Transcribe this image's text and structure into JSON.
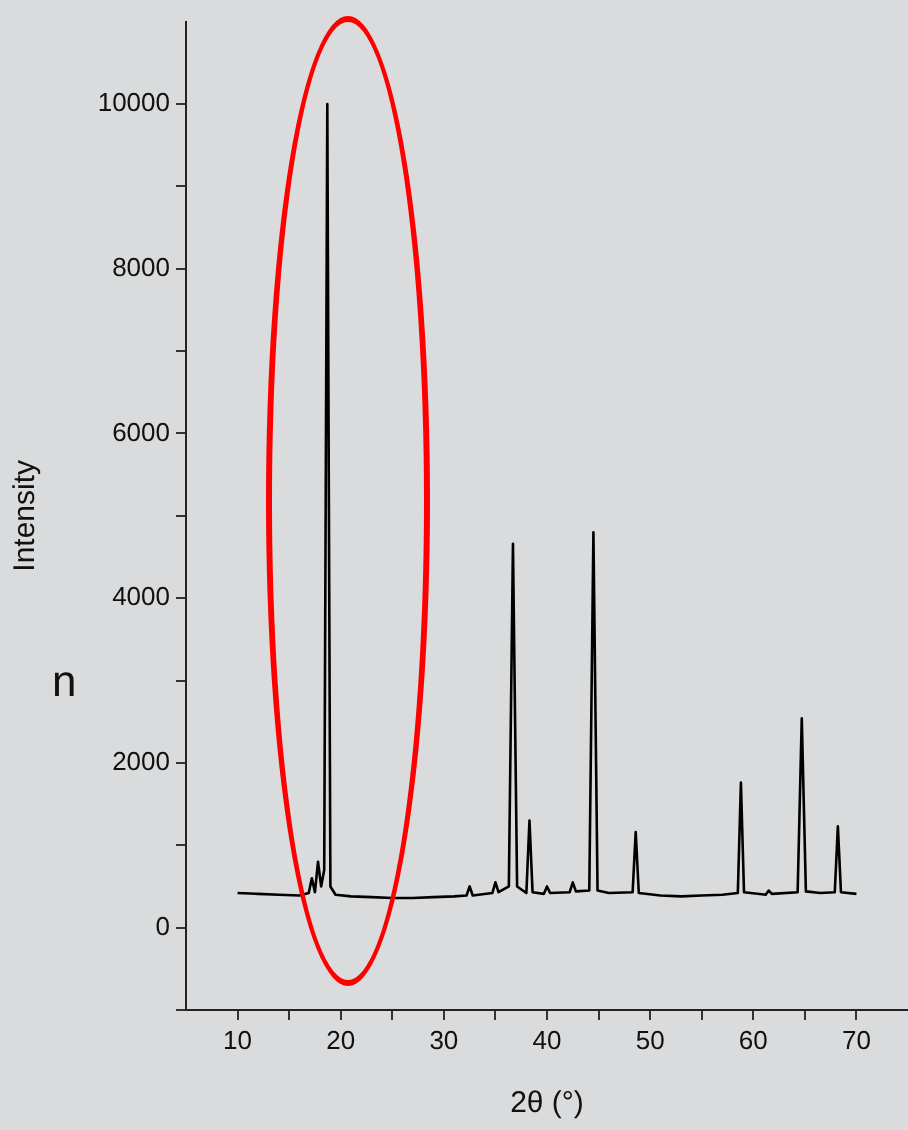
{
  "chart_data": {
    "type": "line",
    "xlabel": "2θ (°)",
    "ylabel": "Intensity",
    "annotations": [
      "n"
    ],
    "x": [
      10,
      12,
      14,
      16,
      16.9,
      17.2,
      17.5,
      17.8,
      18.1,
      18.4,
      18.7,
      19.0,
      19.5,
      21,
      23,
      25,
      27,
      29,
      31,
      32.2,
      32.5,
      32.8,
      34.7,
      35,
      35.3,
      36.3,
      36.7,
      37.1,
      38.0,
      38.3,
      38.6,
      39.7,
      40,
      40.3,
      42.2,
      42.5,
      42.8,
      44.1,
      44.5,
      44.9,
      46,
      48.3,
      48.6,
      48.9,
      51,
      53,
      55,
      57,
      58.5,
      58.8,
      59.1,
      61.2,
      61.5,
      61.8,
      64.3,
      64.7,
      65.1,
      66.5,
      67.9,
      68.2,
      68.5,
      70
    ],
    "series": [
      {
        "color": "#000000",
        "values": [
          420,
          410,
          400,
          390,
          420,
          600,
          430,
          800,
          500,
          700,
          10000,
          500,
          400,
          380,
          370,
          360,
          360,
          370,
          380,
          390,
          500,
          390,
          420,
          550,
          430,
          500,
          4660,
          500,
          420,
          1300,
          430,
          410,
          500,
          420,
          430,
          550,
          440,
          450,
          4800,
          450,
          420,
          430,
          1160,
          420,
          390,
          380,
          390,
          400,
          420,
          1760,
          430,
          400,
          450,
          410,
          430,
          2540,
          440,
          420,
          430,
          1230,
          430,
          410
        ]
      }
    ],
    "xlim": [
      5,
      75
    ],
    "xticks": [
      10,
      {
        "value": 15,
        "label": null
      },
      20,
      {
        "value": 25,
        "label": null
      },
      30,
      {
        "value": 35,
        "label": null
      },
      40,
      {
        "value": 45,
        "label": null
      },
      50,
      {
        "value": 55,
        "label": null
      },
      60,
      {
        "value": 65,
        "label": null
      },
      70
    ],
    "ylim": [
      -1000,
      11000
    ],
    "yticks": [
      {
        "value": -1000,
        "label": null
      },
      0,
      {
        "value": 1000,
        "label": null
      },
      2000,
      {
        "value": 3000,
        "label": null
      },
      4000,
      {
        "value": 5000,
        "label": null
      },
      6000,
      {
        "value": 7000,
        "label": null
      },
      8000,
      {
        "value": 9000,
        "label": null
      },
      10000
    ],
    "grid": false,
    "legend": false,
    "marker": "none",
    "line_style": "solid"
  }
}
